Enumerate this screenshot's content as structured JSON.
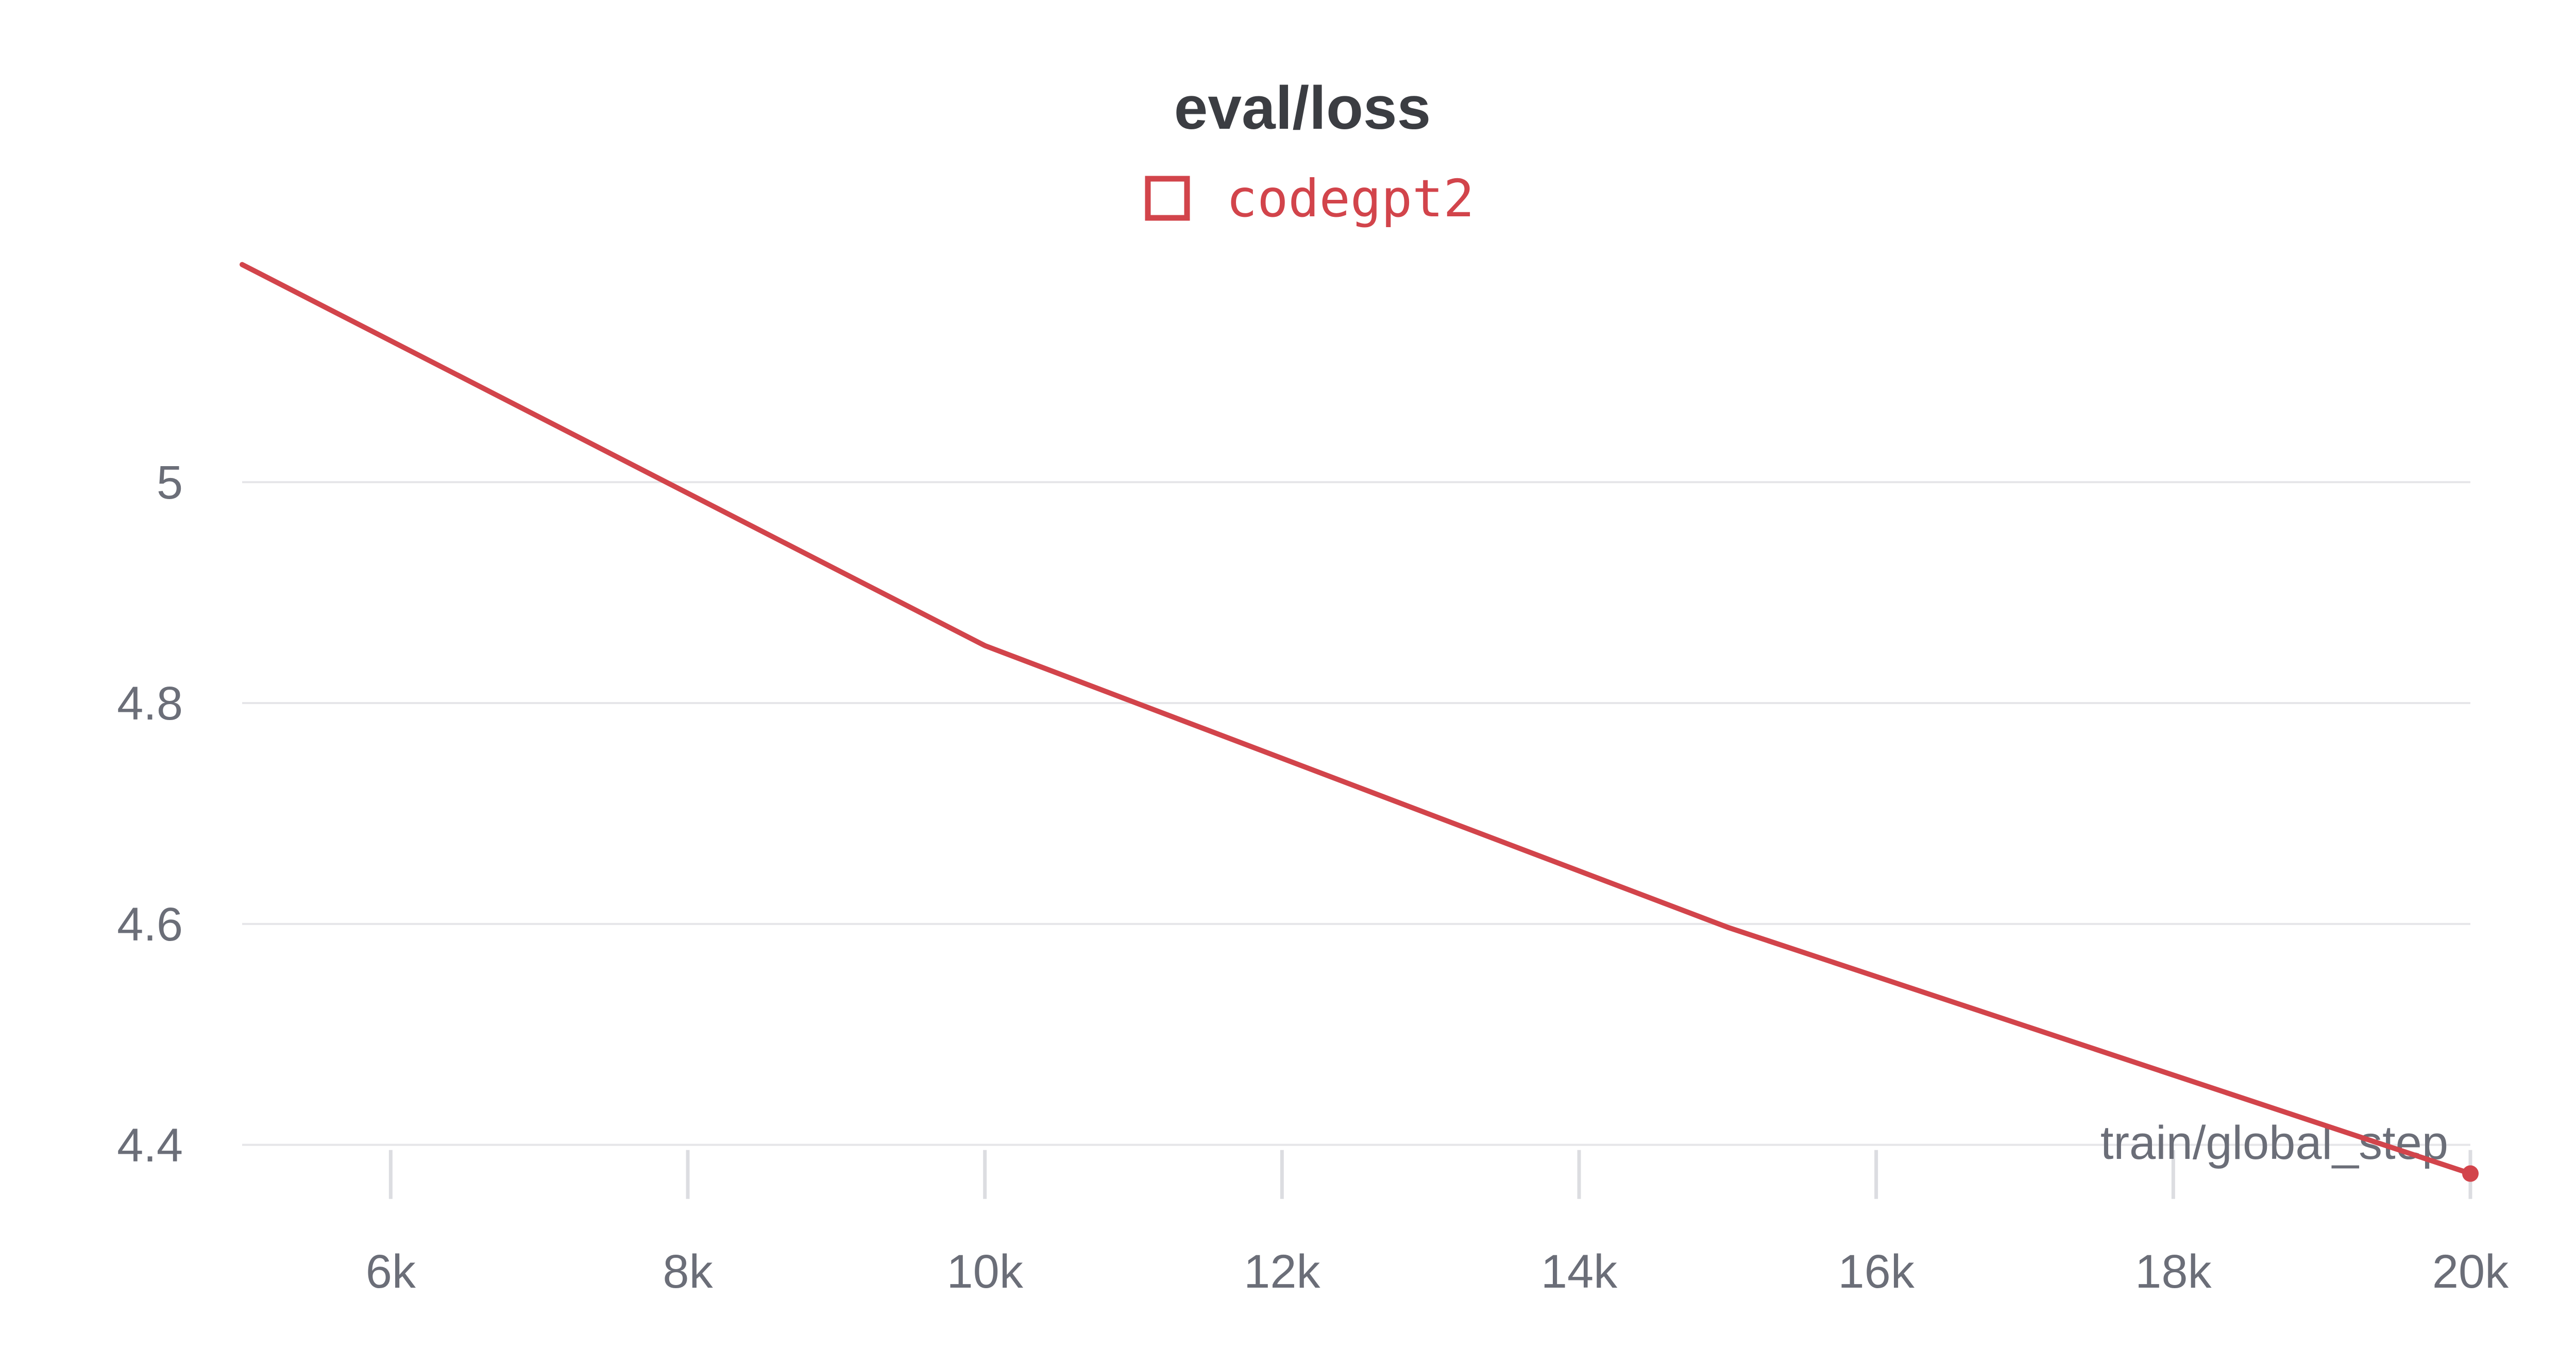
{
  "chart_data": {
    "type": "line",
    "title": "eval/loss",
    "xlabel": "train/global_step",
    "ylabel": "",
    "xlim": [
      5000,
      20000
    ],
    "ylim": [
      4.35,
      5.25
    ],
    "x_ticks": [
      6000,
      8000,
      10000,
      12000,
      14000,
      16000,
      18000,
      20000
    ],
    "x_tick_labels": [
      "6k",
      "8k",
      "10k",
      "12k",
      "14k",
      "16k",
      "18k",
      "20k"
    ],
    "y_ticks": [
      4.4,
      4.6,
      4.8,
      5.0
    ],
    "y_tick_labels": [
      "4.4",
      "4.6",
      "4.8",
      "5"
    ],
    "grid": "horizontal",
    "legend_position": "top-center",
    "series": [
      {
        "name": "codegpt2",
        "color": "#d2444b",
        "x": [
          5000,
          10000,
          15000,
          20000
        ],
        "values": [
          5.197,
          4.852,
          4.597,
          4.374
        ]
      }
    ]
  }
}
